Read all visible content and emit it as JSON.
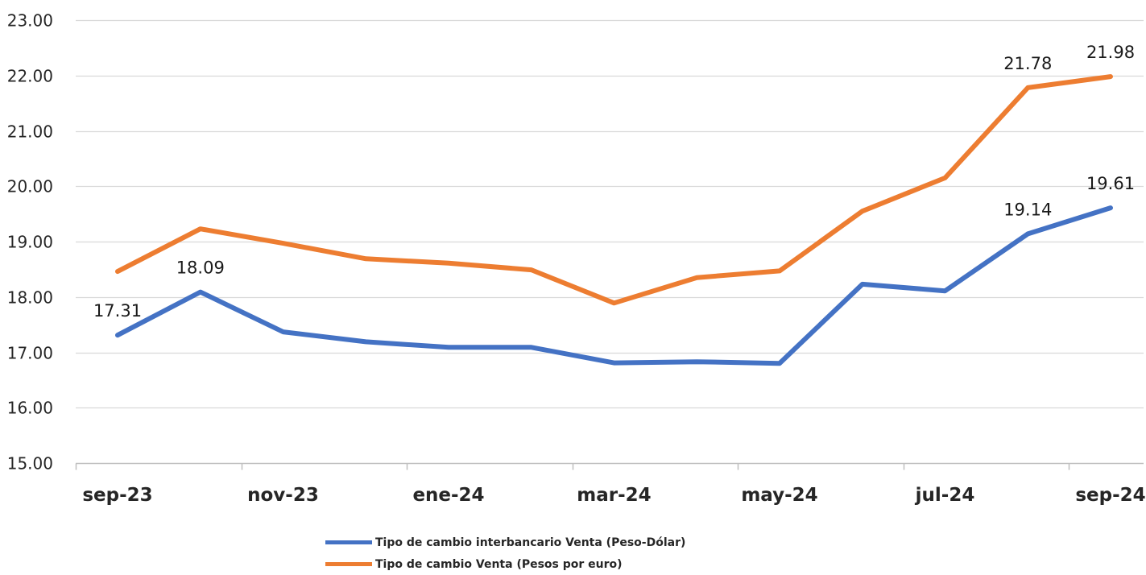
{
  "chart_data": {
    "type": "line",
    "title": "",
    "xlabel": "",
    "ylabel": "",
    "ylim": [
      15,
      23
    ],
    "yticks": [
      "15.00",
      "16.00",
      "17.00",
      "18.00",
      "19.00",
      "20.00",
      "21.00",
      "22.00",
      "23.00"
    ],
    "categories": [
      "sep-23",
      "oct-23",
      "nov-23",
      "dic-23",
      "ene-24",
      "feb-24",
      "mar-24",
      "abr-24",
      "may-24",
      "jun-24",
      "jul-24",
      "ago-24",
      "sep-24"
    ],
    "xtick_labels": [
      "sep-23",
      "nov-23",
      "ene-24",
      "mar-24",
      "may-24",
      "jul-24",
      "sep-24"
    ],
    "grid": "horizontal",
    "legend_position": "bottom",
    "series": [
      {
        "name": "Tipo de cambio interbancario Venta (Peso-Dólar)",
        "color": "#4472C4",
        "values": [
          17.31,
          18.09,
          17.37,
          17.19,
          17.09,
          17.09,
          16.81,
          16.83,
          16.8,
          18.23,
          18.11,
          19.14,
          19.61
        ],
        "labels": [
          "17.31",
          "18.09",
          "",
          "",
          "",
          "",
          "",
          "",
          "",
          "",
          "",
          "19.14",
          "19.61"
        ]
      },
      {
        "name": "Tipo de cambio Venta (Pesos por euro)",
        "color": "#ED7D31",
        "values": [
          18.46,
          19.23,
          18.97,
          18.69,
          18.61,
          18.49,
          17.89,
          18.35,
          18.47,
          19.55,
          20.15,
          21.78,
          21.98
        ],
        "labels": [
          "",
          "",
          "",
          "",
          "",
          "",
          "",
          "",
          "",
          "",
          "",
          "21.78",
          "21.98"
        ]
      }
    ]
  }
}
